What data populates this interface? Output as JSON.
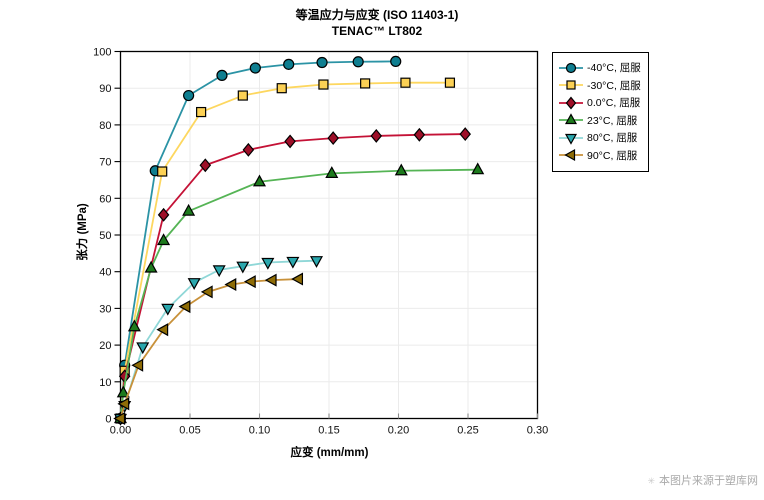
{
  "watermark": {
    "mark": "✳",
    "text": "本图片来源于塑库网"
  },
  "chart_data": {
    "type": "line",
    "title": "等温应力与应变 (ISO 11403-1)",
    "subtitle": "TENAC™ LT802",
    "xlabel": "应变 (mm/mm)",
    "ylabel": "张力 (MPa)",
    "xlim": [
      0,
      0.3
    ],
    "ylim": [
      0,
      100
    ],
    "x_ticks": [
      0,
      0.05,
      0.1,
      0.15,
      0.2,
      0.25,
      0.3
    ],
    "x_tick_labels": [
      "0.00",
      "0.05",
      "0.10",
      "0.15",
      "0.20",
      "0.25",
      "0.30"
    ],
    "y_ticks": [
      0,
      10,
      20,
      30,
      40,
      50,
      60,
      70,
      80,
      90,
      100
    ],
    "y_tick_labels": [
      "0",
      "10",
      "20",
      "30",
      "40",
      "50",
      "60",
      "70",
      "80",
      "90",
      "100"
    ],
    "grid": true,
    "legend_position": "right",
    "series": [
      {
        "name": "-40°C, 屈服",
        "marker": "circle",
        "line_color": "#2b93a5",
        "marker_fill": "#0e7e90",
        "x": [
          0,
          0.003,
          0.025,
          0.049,
          0.073,
          0.097,
          0.121,
          0.145,
          0.171,
          0.198
        ],
        "y": [
          0,
          14.5,
          67.5,
          88,
          93.5,
          95.5,
          96.5,
          97,
          97.2,
          97.3
        ]
      },
      {
        "name": "-30°C, 屈服",
        "marker": "square",
        "line_color": "#fdd75f",
        "marker_fill": "#fcd155",
        "x": [
          0,
          0.003,
          0.03,
          0.058,
          0.088,
          0.116,
          0.146,
          0.176,
          0.205,
          0.237
        ],
        "y": [
          0,
          13,
          67.3,
          83.5,
          88,
          90,
          91,
          91.3,
          91.5,
          91.5
        ]
      },
      {
        "name": "0.0°C, 屈服",
        "marker": "diamond",
        "line_color": "#c41236",
        "marker_fill": "#9e0f28",
        "x": [
          0,
          0.003,
          0.031,
          0.061,
          0.092,
          0.122,
          0.153,
          0.184,
          0.215,
          0.248
        ],
        "y": [
          0,
          11.5,
          55.5,
          69,
          73.2,
          75.5,
          76.4,
          77,
          77.3,
          77.5
        ]
      },
      {
        "name": "23°C, 屈服",
        "marker": "triangle-up",
        "line_color": "#55b455",
        "marker_fill": "#1d7a1d",
        "x": [
          0,
          0.002,
          0.01,
          0.022,
          0.031,
          0.049,
          0.1,
          0.152,
          0.202,
          0.257
        ],
        "y": [
          0,
          7,
          25,
          41,
          48.5,
          56.5,
          64.5,
          66.8,
          67.5,
          67.8
        ]
      },
      {
        "name": "80°C, 屈服",
        "marker": "triangle-down",
        "line_color": "#8fd7d7",
        "marker_fill": "#2aa7ad",
        "x": [
          0,
          0.003,
          0.016,
          0.034,
          0.053,
          0.071,
          0.088,
          0.106,
          0.124,
          0.141
        ],
        "y": [
          0,
          3.5,
          19.5,
          30,
          37,
          40.5,
          41.5,
          42.5,
          42.8,
          43
        ]
      },
      {
        "name": "90°C, 屈服",
        "marker": "triangle-left",
        "line_color": "#c8913a",
        "marker_fill": "#8e6c06",
        "x": [
          0,
          0.003,
          0.013,
          0.031,
          0.047,
          0.063,
          0.08,
          0.094,
          0.109,
          0.128
        ],
        "y": [
          0,
          4,
          14.5,
          24.2,
          30.5,
          34.5,
          36.5,
          37.3,
          37.7,
          38
        ]
      }
    ]
  }
}
